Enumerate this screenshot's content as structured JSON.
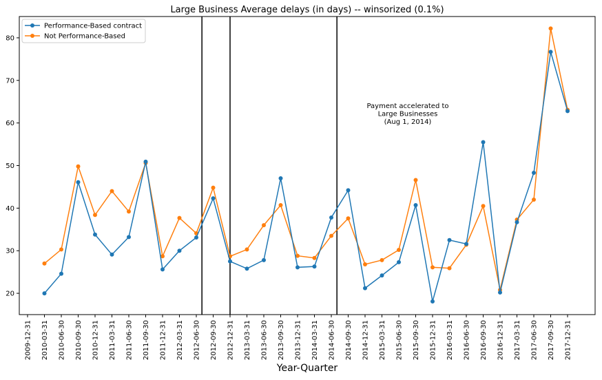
{
  "chart_data": {
    "type": "line",
    "title": "Large Business Average delays (in days) -- winsorized (0.1%)",
    "xlabel": "Year-Quarter",
    "ylabel": "",
    "ylim": [
      15,
      85
    ],
    "yticks": [
      20,
      30,
      40,
      50,
      60,
      70,
      80
    ],
    "grid": false,
    "legend_position": "top-left",
    "categories": [
      "2009-12-31",
      "2010-03-31",
      "2010-06-30",
      "2010-09-30",
      "2010-12-31",
      "2011-03-31",
      "2011-06-30",
      "2011-09-30",
      "2011-12-31",
      "2012-03-31",
      "2012-06-30",
      "2012-09-30",
      "2012-12-31",
      "2013-03-31",
      "2013-06-30",
      "2013-09-30",
      "2013-12-31",
      "2014-03-31",
      "2014-06-30",
      "2014-09-30",
      "2014-12-31",
      "2015-03-31",
      "2015-06-30",
      "2015-09-30",
      "2015-12-31",
      "2016-03-31",
      "2016-06-30",
      "2016-09-30",
      "2016-12-31",
      "2017-03-31",
      "2017-06-30",
      "2017-09-30",
      "2017-12-31"
    ],
    "series": [
      {
        "name": "Performance-Based contract",
        "color": "#1f77b4",
        "values": [
          null,
          20.0,
          24.6,
          46.1,
          33.8,
          29.1,
          33.2,
          50.9,
          25.6,
          30.0,
          33.1,
          42.3,
          27.5,
          25.8,
          27.8,
          47.0,
          26.1,
          26.3,
          37.8,
          44.2,
          21.2,
          24.2,
          27.3,
          40.7,
          18.1,
          32.5,
          31.6,
          55.5,
          20.2,
          36.7,
          48.3,
          76.7,
          62.8
        ]
      },
      {
        "name": "Not Performance-Based",
        "color": "#ff7f0e",
        "values": [
          null,
          27.0,
          30.3,
          49.8,
          38.4,
          44.0,
          39.2,
          50.6,
          28.7,
          37.7,
          34.1,
          44.8,
          28.7,
          30.3,
          36.0,
          40.7,
          28.8,
          28.3,
          33.5,
          37.6,
          26.8,
          27.8,
          30.2,
          46.6,
          26.1,
          25.9,
          31.4,
          40.5,
          20.8,
          37.3,
          42.0,
          82.2,
          63.1
        ]
      }
    ],
    "vlines": [
      "2012-07-31",
      "2012-12-31",
      "2014-07-31"
    ],
    "annotation": {
      "lines": [
        "Payment accelerated to",
        "Large Businesses",
        "(Aug 1, 2014)"
      ]
    }
  }
}
